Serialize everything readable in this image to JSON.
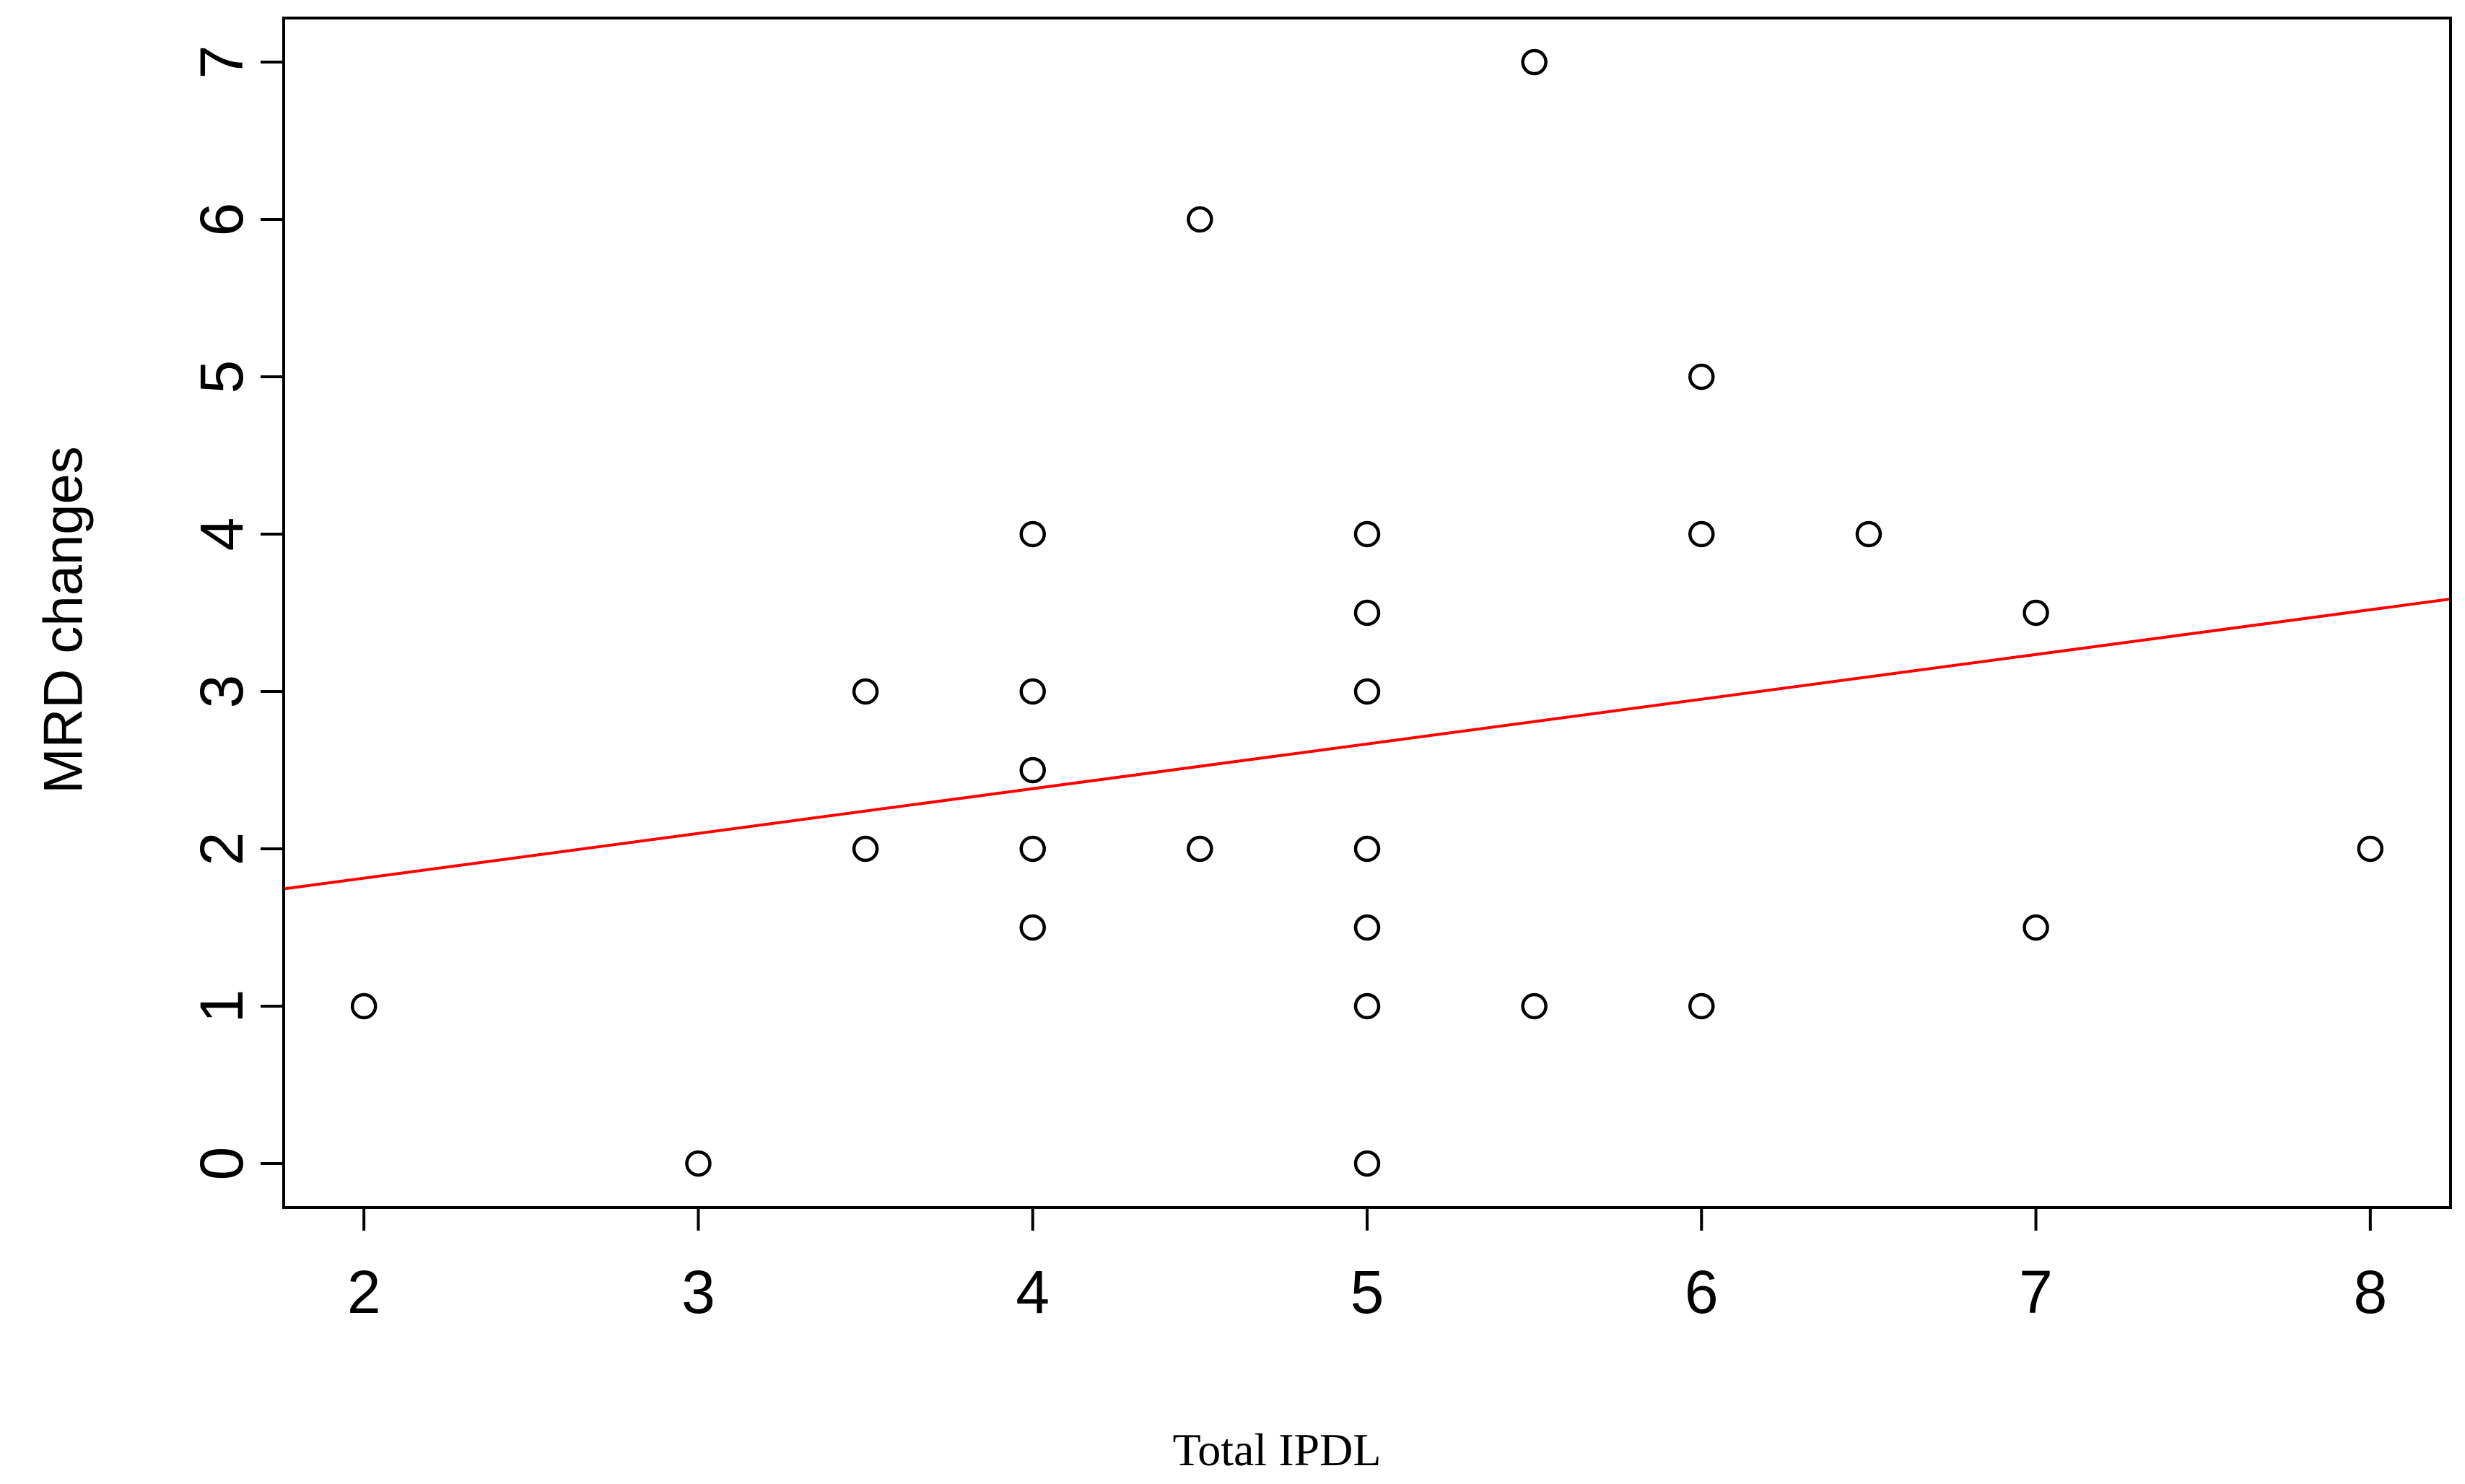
{
  "chart_data": {
    "type": "scatter",
    "title": "",
    "xlabel": "Total IPDL",
    "ylabel": "MRD changes",
    "xlim": [
      1.76,
      8.24
    ],
    "ylim": [
      -0.28,
      7.28
    ],
    "x_ticks": [
      2,
      3,
      4,
      5,
      6,
      7,
      8
    ],
    "y_ticks": [
      0,
      1,
      2,
      3,
      4,
      5,
      6,
      7
    ],
    "grid": false,
    "legend": "none",
    "marker": "open-circle",
    "points": [
      {
        "x": 2,
        "y": 1
      },
      {
        "x": 3,
        "y": 0
      },
      {
        "x": 3.5,
        "y": 3
      },
      {
        "x": 3.5,
        "y": 2
      },
      {
        "x": 4,
        "y": 4
      },
      {
        "x": 4,
        "y": 3
      },
      {
        "x": 4,
        "y": 2.5
      },
      {
        "x": 4,
        "y": 2
      },
      {
        "x": 4,
        "y": 1.5
      },
      {
        "x": 4.5,
        "y": 6
      },
      {
        "x": 4.5,
        "y": 2
      },
      {
        "x": 5,
        "y": 4
      },
      {
        "x": 5,
        "y": 3.5
      },
      {
        "x": 5,
        "y": 3
      },
      {
        "x": 5,
        "y": 2
      },
      {
        "x": 5,
        "y": 1.5
      },
      {
        "x": 5,
        "y": 1
      },
      {
        "x": 5,
        "y": 0
      },
      {
        "x": 5.5,
        "y": 7
      },
      {
        "x": 5.5,
        "y": 1
      },
      {
        "x": 6,
        "y": 5
      },
      {
        "x": 6,
        "y": 4
      },
      {
        "x": 6,
        "y": 1
      },
      {
        "x": 6.5,
        "y": 4
      },
      {
        "x": 7,
        "y": 3.5
      },
      {
        "x": 7,
        "y": 1.5
      },
      {
        "x": 8,
        "y": 2
      }
    ],
    "trend_line": {
      "color": "#ff0000",
      "intercept": 1.245,
      "slope": 0.2843
    },
    "colors": {
      "points": "#000000",
      "axes": "#000000",
      "trend": "#ff0000"
    }
  }
}
